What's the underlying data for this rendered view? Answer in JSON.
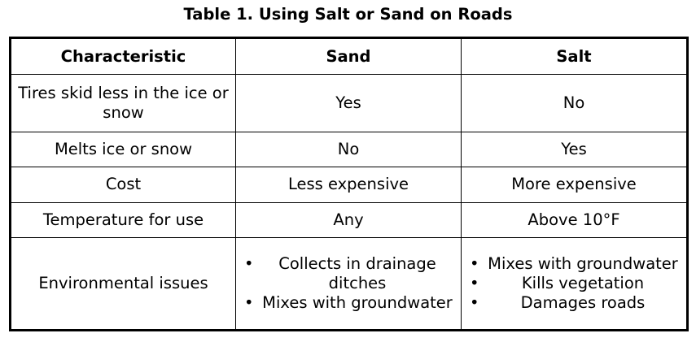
{
  "title": "Table 1. Using Salt or Sand on Roads",
  "table": {
    "headers": [
      "Characteristic",
      "Sand",
      "Salt"
    ],
    "rows": [
      [
        "Tires skid less in the ice or snow",
        "Yes",
        "No"
      ],
      [
        "Melts ice or snow",
        "No",
        "Yes"
      ],
      [
        "Cost",
        "Less expensive",
        "More expensive"
      ],
      [
        "Temperature for use",
        "Any",
        "Above 10°F"
      ],
      [
        "Environmental issues",
        [
          "Collects in drainage ditches",
          "Mixes with groundwater"
        ],
        [
          "Mixes with groundwater",
          "Kills vegetation",
          "Damages roads"
        ]
      ]
    ]
  }
}
